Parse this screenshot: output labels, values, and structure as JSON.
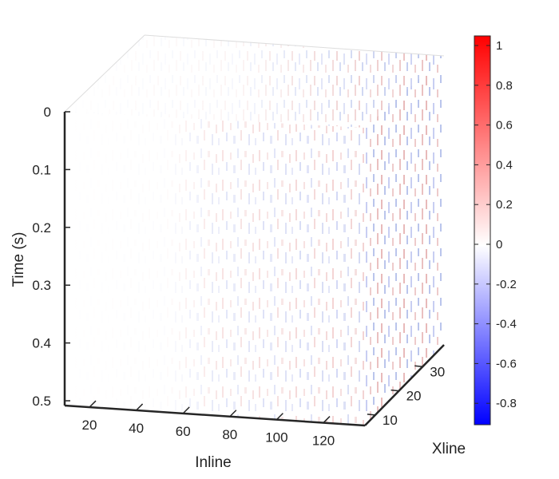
{
  "chart_data": {
    "type": "heatmap",
    "subtype": "3d-seismic-volume-slices",
    "x_axis": {
      "label": "Inline",
      "ticks": [
        "20",
        "40",
        "60",
        "80",
        "100",
        "120"
      ]
    },
    "y_axis": {
      "label": "Xline",
      "ticks": [
        "10",
        "20",
        "30"
      ]
    },
    "z_axis": {
      "label": "Time (s)",
      "ticks": [
        "0",
        "0.1",
        "0.2",
        "0.3",
        "0.4",
        "0.5"
      ],
      "direction": "downward"
    },
    "colorbar": {
      "ticks": [
        "1",
        "0.8",
        "0.6",
        "0.4",
        "0.2",
        "0",
        "-0.2",
        "-0.4",
        "-0.6",
        "-0.8"
      ],
      "range": [
        -0.9,
        1.05
      ],
      "colormap": [
        "#0000ff",
        "#ffffff",
        "#ff0000"
      ]
    },
    "grid": false,
    "legend": "none"
  }
}
